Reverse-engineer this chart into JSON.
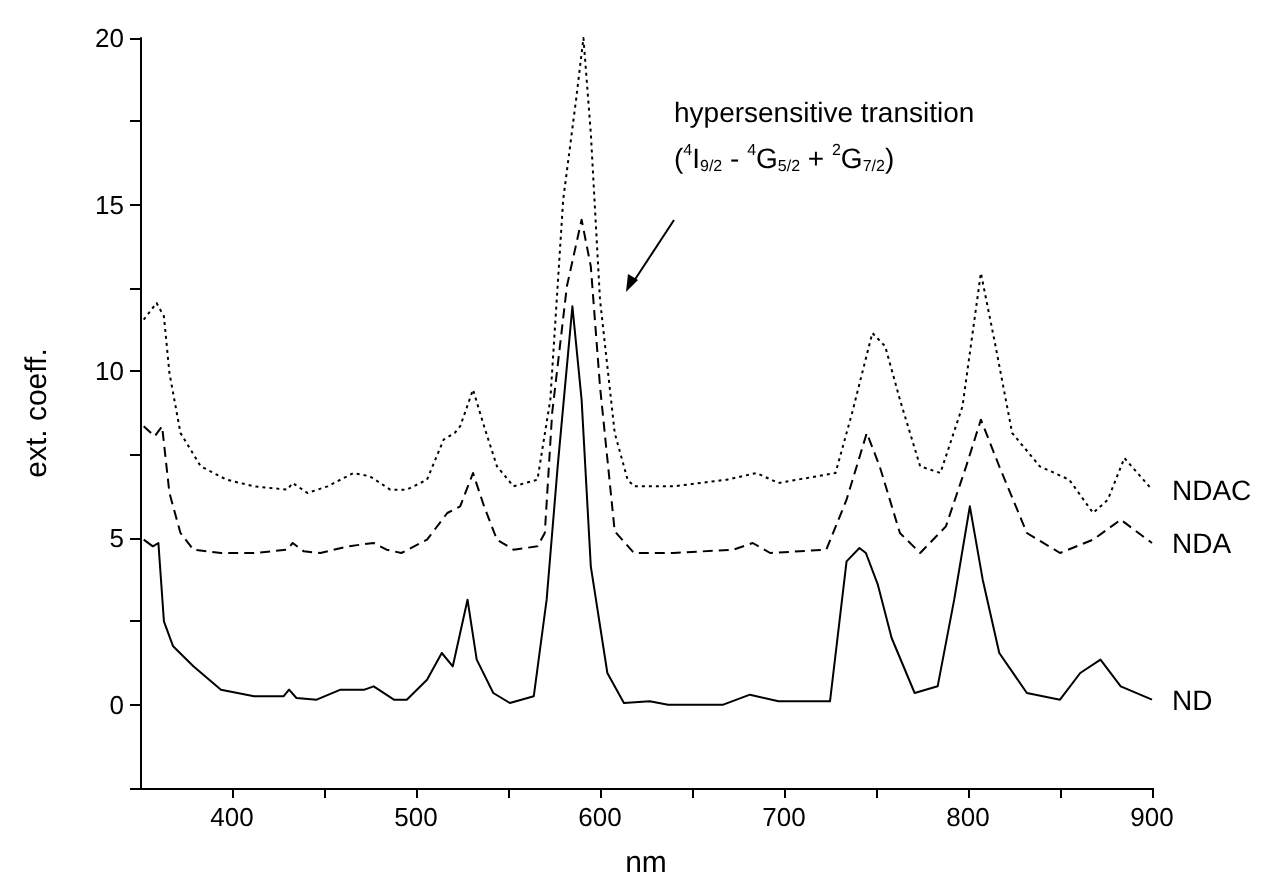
{
  "chart_data": {
    "type": "line",
    "xlabel": "nm",
    "ylabel": "ext. coeff.",
    "annotations": [
      "hypersensitive transition",
      "($^{4}$I$_{9/2}$ - $^{4}$G$_{5/2}$ + $^{2}$G$_{7/2}$)"
    ],
    "xlim": [
      350,
      900
    ],
    "ylim": [
      -2.5,
      20
    ],
    "xticks": [
      400,
      {
        "value": 450,
        "label": null
      },
      500,
      {
        "value": 550,
        "label": null
      },
      600,
      {
        "value": 650,
        "label": null
      },
      700,
      {
        "value": 750,
        "label": null
      },
      800,
      {
        "value": 850,
        "label": null
      },
      900
    ],
    "yticks": [
      {
        "value": -2.5,
        "label": null
      },
      0,
      {
        "value": 2.5,
        "label": null
      },
      5,
      {
        "value": 7.5,
        "label": null
      },
      10,
      {
        "value": 12.5,
        "label": null
      },
      15,
      {
        "value": 17.5,
        "label": null
      },
      20
    ],
    "grid": false,
    "legend": false,
    "marker": "none",
    "series": [
      {
        "name": "ND",
        "color": "#000000",
        "line_style": "solid",
        "x": [
          352,
          357,
          360,
          363,
          368,
          379,
          394,
          412,
          428,
          431,
          435,
          446,
          459,
          472,
          477,
          488,
          495,
          506,
          514,
          520,
          528,
          533,
          542,
          551,
          564,
          571,
          577,
          585,
          590,
          595,
          604,
          613,
          627,
          637,
          667,
          681.5,
          697,
          725,
          734,
          741,
          744.5,
          751,
          758.5,
          771,
          783.5,
          792.5,
          801,
          808,
          817,
          832,
          850,
          861,
          872,
          883,
          900
        ],
        "values": [
          4.95,
          4.75,
          4.85,
          2.5,
          1.75,
          1.15,
          0.45,
          0.25,
          0.25,
          0.45,
          0.2,
          0.15,
          0.45,
          0.45,
          0.55,
          0.15,
          0.15,
          0.75,
          1.55,
          1.15,
          3.15,
          1.35,
          0.35,
          0.05,
          0.25,
          3.15,
          7.15,
          11.95,
          9.15,
          4.15,
          0.95,
          0.05,
          0.1,
          0,
          0,
          0.3,
          0.1,
          0.1,
          4.3,
          4.7,
          4.55,
          3.6,
          2.0,
          0.35,
          0.55,
          3.15,
          5.95,
          3.75,
          1.55,
          0.35,
          0.15,
          0.95,
          1.35,
          0.55,
          0.15
        ]
      },
      {
        "name": "NDA",
        "color": "#000000",
        "line_style": "dashed",
        "x": [
          352,
          358,
          362,
          366,
          372,
          379,
          394,
          412,
          430,
          433,
          439,
          448,
          463,
          477,
          484,
          492,
          506,
          517,
          524,
          531,
          537,
          544,
          553,
          566,
          570,
          574,
          582,
          590,
          595,
          600,
          608,
          618.5,
          640,
          672.5,
          683,
          692.5,
          723,
          734,
          745,
          752,
          763,
          774,
          788,
          799,
          807,
          817,
          832,
          850,
          868,
          883,
          900
        ],
        "values": [
          8.35,
          8.05,
          8.35,
          6.35,
          5.15,
          4.65,
          4.55,
          4.55,
          4.65,
          4.85,
          4.6,
          4.55,
          4.75,
          4.85,
          4.65,
          4.55,
          4.95,
          5.75,
          5.95,
          6.95,
          5.95,
          4.95,
          4.65,
          4.75,
          5.15,
          8.75,
          12.55,
          14.55,
          13.15,
          9.55,
          5.2,
          4.55,
          4.55,
          4.65,
          4.85,
          4.55,
          4.65,
          6.15,
          8.15,
          7.15,
          5.15,
          4.55,
          5.35,
          7.15,
          8.55,
          7.15,
          5.15,
          4.55,
          4.95,
          5.55,
          4.85
        ]
      },
      {
        "name": "NDAC",
        "color": "#000000",
        "line_style": "dotted",
        "x": [
          352,
          359,
          363,
          366,
          372,
          383,
          397,
          412,
          430,
          433,
          441,
          452,
          466,
          475,
          486,
          495,
          506,
          515,
          521,
          524,
          531,
          537,
          544,
          553,
          566,
          573,
          580,
          587,
          591,
          595,
          600,
          608,
          615,
          618.5,
          640,
          669,
          685,
          697,
          728,
          737,
          748,
          755,
          763,
          774,
          785,
          797,
          807,
          815,
          824,
          839,
          855,
          868,
          876,
          885,
          900
        ],
        "values": [
          11.55,
          12.05,
          11.65,
          9.95,
          8.15,
          7.15,
          6.75,
          6.55,
          6.45,
          6.65,
          6.35,
          6.55,
          6.95,
          6.85,
          6.45,
          6.45,
          6.75,
          7.95,
          8.15,
          8.35,
          9.45,
          8.35,
          7.15,
          6.55,
          6.75,
          9.15,
          15.15,
          18.15,
          20,
          17.15,
          12.15,
          8.15,
          6.75,
          6.55,
          6.55,
          6.75,
          6.95,
          6.65,
          6.95,
          8.75,
          11.15,
          10.75,
          9.15,
          7.15,
          6.95,
          8.95,
          12.95,
          10.75,
          8.15,
          7.15,
          6.75,
          5.75,
          6.15,
          7.4,
          6.45
        ]
      }
    ]
  }
}
